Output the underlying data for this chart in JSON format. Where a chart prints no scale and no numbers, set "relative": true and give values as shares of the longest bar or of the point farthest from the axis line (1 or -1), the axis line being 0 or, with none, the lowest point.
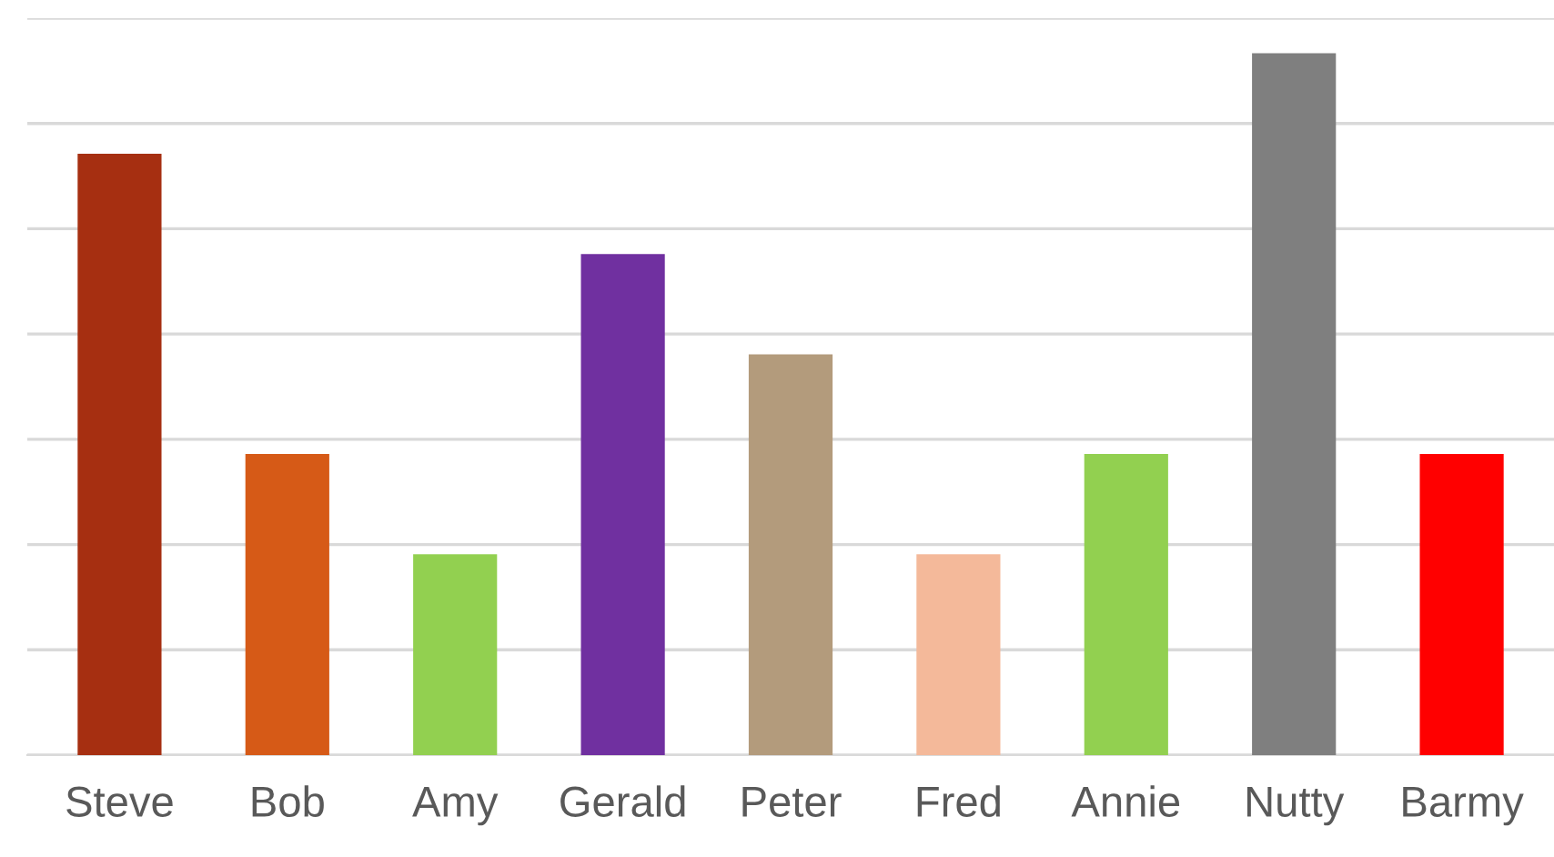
{
  "chart_data": {
    "type": "bar",
    "relative": true,
    "grid": "y",
    "categories": [
      "Steve",
      "Bob",
      "Amy",
      "Gerald",
      "Peter",
      "Fred",
      "Annie",
      "Nutty",
      "Barmy"
    ],
    "values": [
      0.857,
      0.429,
      0.286,
      0.714,
      0.571,
      0.286,
      0.429,
      1,
      0.429
    ],
    "colors": [
      "#a62f11",
      "#d65a17",
      "#92d050",
      "#7030a0",
      "#b39b7c",
      "#f4b99a",
      "#92d050",
      "#7f7f7f",
      "#ff0000"
    ]
  }
}
